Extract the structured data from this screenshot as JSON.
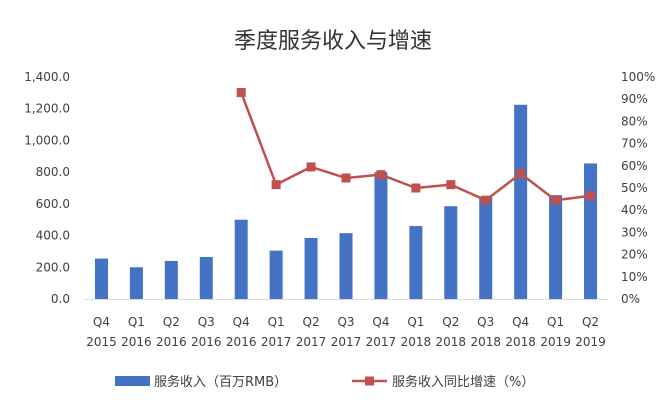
{
  "chart_data": {
    "type": "bar+line",
    "title": "季度服务收入与增速",
    "categories": [
      [
        "Q4",
        "2015"
      ],
      [
        "Q1",
        "2016"
      ],
      [
        "Q2",
        "2016"
      ],
      [
        "Q3",
        "2016"
      ],
      [
        "Q4",
        "2016"
      ],
      [
        "Q1",
        "2017"
      ],
      [
        "Q2",
        "2017"
      ],
      [
        "Q3",
        "2017"
      ],
      [
        "Q4",
        "2017"
      ],
      [
        "Q1",
        "2018"
      ],
      [
        "Q2",
        "2018"
      ],
      [
        "Q3",
        "2018"
      ],
      [
        "Q4",
        "2018"
      ],
      [
        "Q1",
        "2019"
      ],
      [
        "Q2",
        "2019"
      ]
    ],
    "series": [
      {
        "name": "服务收入（百万RMB）",
        "kind": "bar",
        "axis": "left",
        "color": "#4472C4",
        "values": [
          255,
          200,
          240,
          265,
          500,
          305,
          385,
          415,
          800,
          460,
          585,
          645,
          1225,
          655,
          855
        ]
      },
      {
        "name": "服务收入同比增速（%）",
        "kind": "line",
        "axis": "right",
        "color": "#C0504D",
        "values": [
          null,
          null,
          null,
          null,
          93,
          51.5,
          59.5,
          54.5,
          56,
          50,
          51.5,
          44.5,
          56.5,
          44.5,
          46.5
        ]
      }
    ],
    "y_left": {
      "min": 0,
      "max": 1400,
      "step": 200,
      "tick_labels": [
        "0.0",
        "200.0",
        "400.0",
        "600.0",
        "800.0",
        "1,000.0",
        "1,200.0",
        "1,400.0"
      ]
    },
    "y_right": {
      "min": 0,
      "max": 100,
      "step": 10,
      "tick_labels": [
        "0%",
        "10%",
        "20%",
        "30%",
        "40%",
        "50%",
        "60%",
        "70%",
        "80%",
        "90%",
        "100%"
      ]
    },
    "legend_position": "bottom",
    "grid": false
  }
}
